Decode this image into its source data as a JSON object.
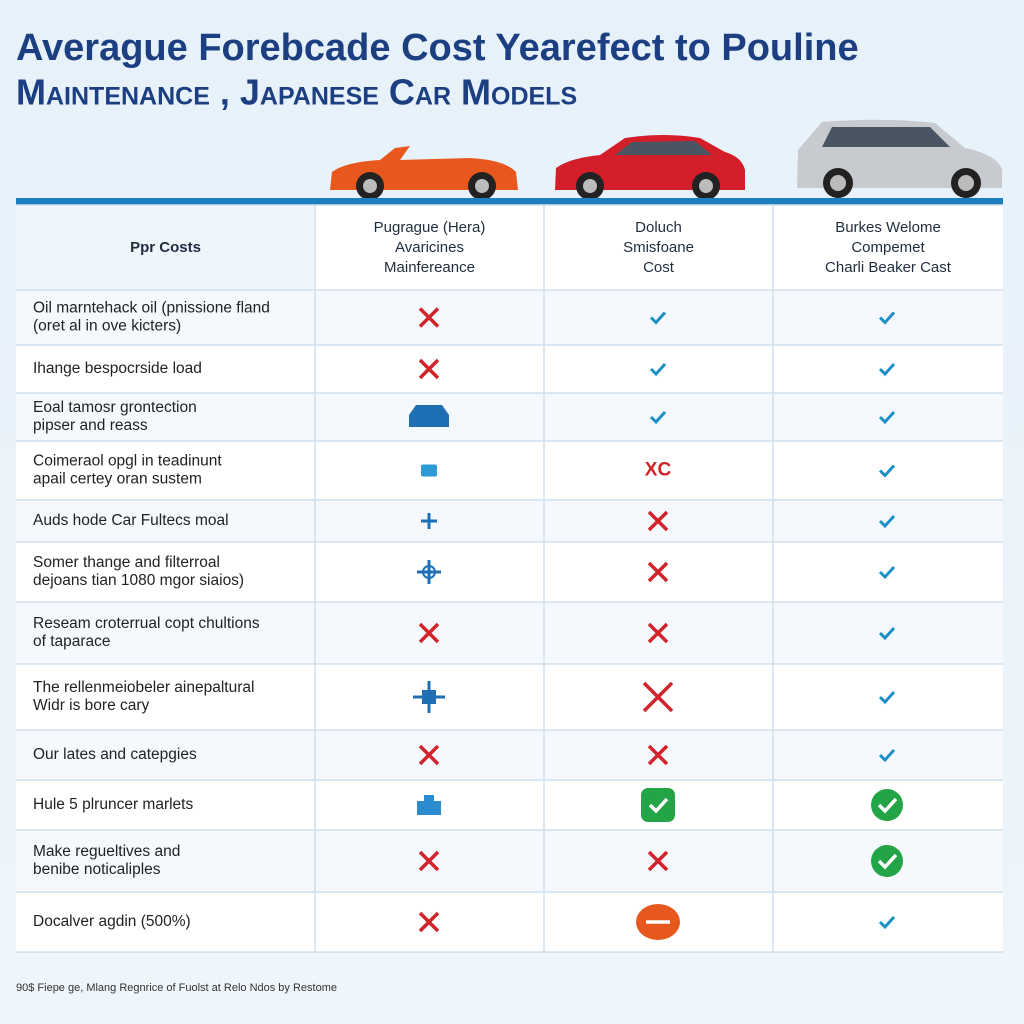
{
  "title": [
    "Averague Forebcade Cost Yearefect to Pouline",
    "Maintenance , Japanese Car Models"
  ],
  "table": {
    "headers": [
      [
        "Ppr Costs"
      ],
      [
        "Pugrague (Hera)",
        "Avaricines",
        "Mainfereance"
      ],
      [
        "Doluch",
        "Smisfoane",
        "Cost"
      ],
      [
        "Burkes Welome",
        "Compemet",
        "Charli Beaker Cast"
      ]
    ],
    "rows": [
      {
        "label": [
          "Oil marntehack oil (pnissione fland",
          "(oret al in ove kicters)"
        ]
      },
      {
        "label": [
          "Ihange bespocrside load"
        ]
      },
      {
        "label": [
          "Eoal tamosr grontection",
          "pipser and reass"
        ]
      },
      {
        "label": [
          "Coimeraol opgl in teadinunt",
          "apail certey oran sustem"
        ],
        "cell": "XC"
      },
      {
        "label": [
          "Auds hode Car Fultecs moal"
        ]
      },
      {
        "label": [
          "Somer thange and filterroal",
          "dejoans tian 1080 mgor siaios)"
        ]
      },
      {
        "label": [
          "Reseam croterrual copt chultions",
          "of taparace"
        ]
      },
      {
        "label": [
          "The rellenmeiobeler ainepaltural",
          "Widr is bore cary"
        ]
      },
      {
        "label": [
          "Our lates and catepgies"
        ]
      },
      {
        "label": [
          "Hule 5 plruncer marlets"
        ]
      },
      {
        "label": [
          "Make regueltives and",
          "benibe noticaliples"
        ]
      },
      {
        "label": [
          "Docalver agdin (500%)"
        ]
      }
    ]
  },
  "footer": "90$ Fiepe ge, Mlang Regnrice of Fuolst at Relo Ndos by Restome"
}
